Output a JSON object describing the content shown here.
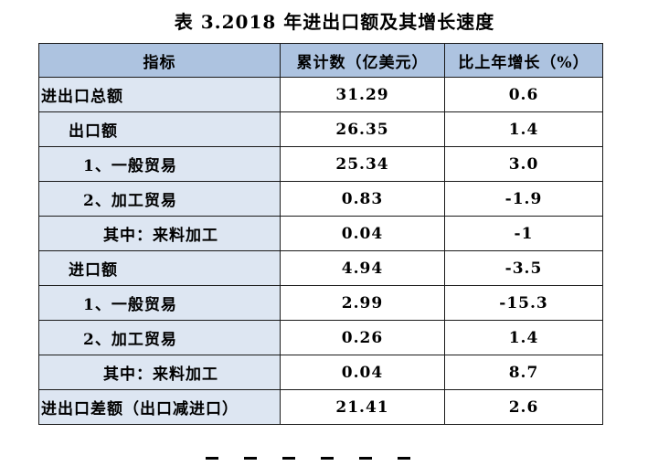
{
  "title": "表 3.2018 年进出口额及其增长速度",
  "table": {
    "headers": [
      "指标",
      "累计数（亿美元）",
      "比上年增长（%）"
    ],
    "rows": [
      {
        "label": "进出口总额",
        "indent": 0,
        "cumulative": "31.29",
        "growth": "0.6"
      },
      {
        "label": "出口额",
        "indent": 1,
        "cumulative": "26.35",
        "growth": "1.4"
      },
      {
        "label": "1、一般贸易",
        "indent": 2,
        "cumulative": "25.34",
        "growth": "3.0"
      },
      {
        "label": "2、加工贸易",
        "indent": 2,
        "cumulative": "0.83",
        "growth": "-1.9"
      },
      {
        "label": "其中：来料加工",
        "indent": 3,
        "cumulative": "0.04",
        "growth": "-1"
      },
      {
        "label": "进口额",
        "indent": 1,
        "cumulative": "4.94",
        "growth": "-3.5"
      },
      {
        "label": "1、一般贸易",
        "indent": 2,
        "cumulative": "2.99",
        "growth": "-15.3"
      },
      {
        "label": "2、加工贸易",
        "indent": 2,
        "cumulative": "0.26",
        "growth": "1.4"
      },
      {
        "label": "其中：来料加工",
        "indent": 3,
        "cumulative": "0.04",
        "growth": "8.7"
      },
      {
        "label": "进出口差额（出口减进口）",
        "indent": 0,
        "cumulative": "21.41",
        "growth": "2.6"
      }
    ]
  },
  "colors": {
    "header_bg": "#adc3e0",
    "label_bg": "#dde6f2",
    "border": "#1a1a1a"
  }
}
